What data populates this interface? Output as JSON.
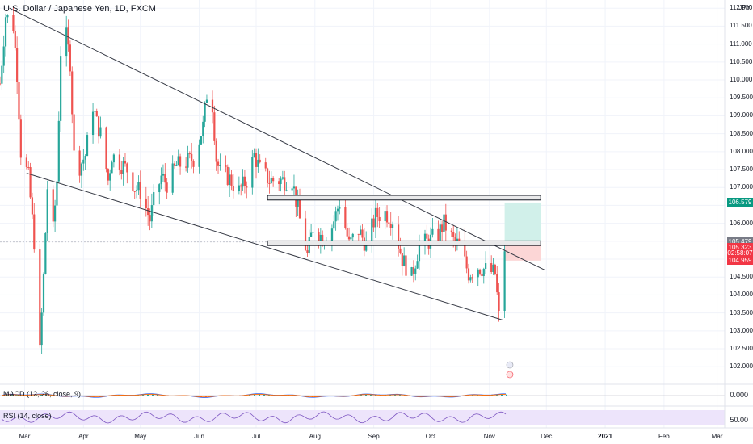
{
  "header": {
    "title": "U.S. Dollar / Japanese Yen, 1D, FXCM",
    "currency": "JPY"
  },
  "chart_data": {
    "type": "candlestick",
    "symbol": "USD/JPY",
    "interval": "1D",
    "source": "FXCM",
    "y_axis": {
      "ticks": [
        "112.000",
        "111.500",
        "111.000",
        "110.500",
        "110.000",
        "109.500",
        "109.000",
        "108.500",
        "108.000",
        "107.500",
        "107.000",
        "106.500",
        "106.000",
        "105.500",
        "105.000",
        "104.500",
        "104.000",
        "103.500",
        "103.000",
        "102.500",
        "102.000"
      ],
      "range": [
        101.6,
        112.05
      ]
    },
    "x_axis": {
      "ticks": [
        "Mar",
        "Apr",
        "May",
        "Jun",
        "Jul",
        "Aug",
        "Sep",
        "Oct",
        "Nov",
        "Dec",
        "2021",
        "Feb",
        "Mar"
      ],
      "range": [
        "2020-02-17",
        "2021-03-05"
      ]
    },
    "price_path": [
      [
        "2020-02-17",
        109.9
      ],
      [
        "2020-02-20",
        111.8
      ],
      [
        "2020-02-24",
        111.5
      ],
      [
        "2020-02-26",
        110.2
      ],
      [
        "2020-02-28",
        108.0
      ],
      [
        "2020-03-03",
        107.3
      ],
      [
        "2020-03-06",
        105.5
      ],
      [
        "2020-03-09",
        102.4
      ],
      [
        "2020-03-11",
        104.5
      ],
      [
        "2020-03-13",
        107.0
      ],
      [
        "2020-03-16",
        105.8
      ],
      [
        "2020-03-18",
        107.2
      ],
      [
        "2020-03-20",
        110.8
      ],
      [
        "2020-03-23",
        111.2
      ],
      [
        "2020-03-25",
        110.5
      ],
      [
        "2020-03-27",
        107.9
      ],
      [
        "2020-03-30",
        107.6
      ],
      [
        "2020-04-02",
        107.9
      ],
      [
        "2020-04-06",
        109.3
      ],
      [
        "2020-04-08",
        108.8
      ],
      [
        "2020-04-10",
        108.5
      ],
      [
        "2020-04-14",
        107.2
      ],
      [
        "2020-04-16",
        107.9
      ],
      [
        "2020-04-20",
        107.7
      ],
      [
        "2020-04-24",
        107.5
      ],
      [
        "2020-04-28",
        107.0
      ],
      [
        "2020-05-01",
        106.9
      ],
      [
        "2020-05-06",
        106.1
      ],
      [
        "2020-05-08",
        106.6
      ],
      [
        "2020-05-12",
        107.3
      ],
      [
        "2020-05-15",
        107.1
      ],
      [
        "2020-05-20",
        107.6
      ],
      [
        "2020-05-25",
        107.7
      ],
      [
        "2020-05-29",
        107.8
      ],
      [
        "2020-06-03",
        108.7
      ],
      [
        "2020-06-05",
        109.6
      ],
      [
        "2020-06-08",
        109.3
      ],
      [
        "2020-06-10",
        107.8
      ],
      [
        "2020-06-12",
        107.4
      ],
      [
        "2020-06-16",
        107.3
      ],
      [
        "2020-06-22",
        106.9
      ],
      [
        "2020-06-26",
        107.2
      ],
      [
        "2020-06-30",
        107.9
      ],
      [
        "2020-07-03",
        107.5
      ],
      [
        "2020-07-08",
        107.2
      ],
      [
        "2020-07-14",
        107.2
      ],
      [
        "2020-07-20",
        107.2
      ],
      [
        "2020-07-24",
        106.1
      ],
      [
        "2020-07-28",
        105.1
      ],
      [
        "2020-07-31",
        105.9
      ],
      [
        "2020-08-05",
        105.6
      ],
      [
        "2020-08-10",
        105.9
      ],
      [
        "2020-08-14",
        106.6
      ],
      [
        "2020-08-19",
        105.4
      ],
      [
        "2020-08-24",
        105.8
      ],
      [
        "2020-08-28",
        105.4
      ],
      [
        "2020-09-02",
        106.2
      ],
      [
        "2020-09-07",
        106.3
      ],
      [
        "2020-09-11",
        106.1
      ],
      [
        "2020-09-16",
        105.0
      ],
      [
        "2020-09-21",
        104.5
      ],
      [
        "2020-09-25",
        105.4
      ],
      [
        "2020-09-30",
        105.5
      ],
      [
        "2020-10-05",
        105.7
      ],
      [
        "2020-10-08",
        106.0
      ],
      [
        "2020-10-13",
        105.5
      ],
      [
        "2020-10-16",
        105.4
      ],
      [
        "2020-10-21",
        104.6
      ],
      [
        "2020-10-26",
        104.8
      ],
      [
        "2020-10-30",
        104.7
      ],
      [
        "2020-11-04",
        104.6
      ],
      [
        "2020-11-06",
        103.4
      ],
      [
        "2020-11-09",
        105.3
      ],
      [
        "2020-11-10",
        105.3
      ]
    ],
    "annotations": {
      "upper_trendline": [
        [
          "2020-02-22",
          112.0
        ],
        [
          "2020-11-30",
          104.7
        ]
      ],
      "lower_trendline": [
        [
          "2020-03-02",
          107.4
        ],
        [
          "2020-11-08",
          103.3
        ]
      ],
      "resistance_zone": {
        "x": [
          "2020-07-07",
          "2020-11-28"
        ],
        "y": [
          106.65,
          106.78
        ]
      },
      "support_zone": {
        "x": [
          "2020-07-07",
          "2020-11-28"
        ],
        "y": [
          105.38,
          105.51
        ]
      },
      "long_position": {
        "x": [
          "2020-11-09",
          "2020-11-28"
        ],
        "entry": 105.479,
        "target": 106.579,
        "stop": 104.959
      }
    },
    "price_labels": [
      {
        "text": "106.579",
        "value": 106.579,
        "color": "#089981"
      },
      {
        "text": "105.479",
        "value": 105.479,
        "color": "#787b86"
      },
      {
        "text": "105.323",
        "value": 105.323,
        "color": "#f23645"
      },
      {
        "text": "02:58:07",
        "value": 105.16,
        "color": "#f23645"
      },
      {
        "text": "104.959",
        "value": 104.959,
        "color": "#f23645"
      }
    ],
    "indicators": [
      {
        "name": "MACD",
        "label": "MACD (12, 26, close, 9)",
        "value_label": "0.000"
      },
      {
        "name": "RSI",
        "label": "RSI (14, close)",
        "value_label": "50.00"
      }
    ]
  },
  "colors": {
    "up": "#26a69a",
    "down": "#ef5350",
    "target_fill": "#d1f0ea",
    "stop_fill": "#fcd6d6",
    "rsi_band": "#ede4fb",
    "macd": "#2962ff",
    "signal": "#ff6d00"
  }
}
